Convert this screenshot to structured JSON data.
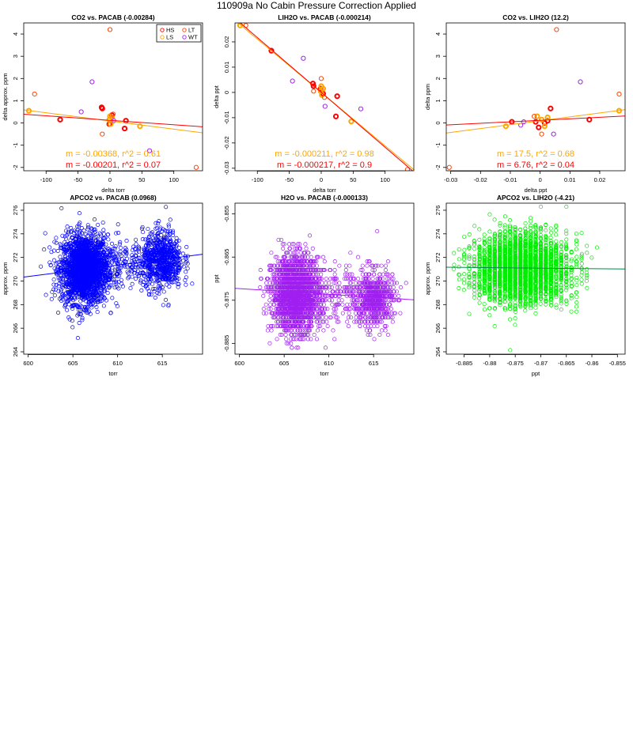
{
  "page": {
    "title": "110909a   No Cabin Pressure Correction Applied"
  },
  "colors": {
    "HS": "#ff0000",
    "LS": "#ffa500",
    "LT": "#ff4500",
    "WT": "#a020f0",
    "fit_red": "#ff0000",
    "fit_orange": "#ffa500",
    "blue": "#0000ff",
    "purple": "#a020f0",
    "green": "#00ee00"
  },
  "legend": [
    {
      "label": "HS",
      "color": "#ff0000"
    },
    {
      "label": "LT",
      "color": "#ff4500"
    },
    {
      "label": "LS",
      "color": "#ffa500"
    },
    {
      "label": "WT",
      "color": "#a020f0"
    }
  ],
  "chart_data": [
    {
      "type": "scatter",
      "title": "CO2 vs. PACAB (-0.00284)",
      "xlabel": "delta torr",
      "ylabel": "delta approx. ppm",
      "xlim": [
        -135,
        145
      ],
      "ylim": [
        -2.15,
        4.5
      ],
      "xticks": [
        -100,
        -50,
        0,
        50,
        100
      ],
      "yticks": [
        -2,
        -1,
        0,
        1,
        2,
        3,
        4
      ],
      "legend": "top-right",
      "series": [
        {
          "name": "HS",
          "color": "#ff0000",
          "points": [
            [
              -78,
              0.15
            ],
            [
              -13,
              0.7
            ],
            [
              -1,
              -0.05
            ],
            [
              3,
              0.35
            ],
            [
              25,
              0.1
            ],
            [
              23,
              -0.25
            ],
            [
              -12,
              0.65
            ]
          ]
        },
        {
          "name": "LS",
          "color": "#ffa500",
          "points": [
            [
              -127,
              0.55
            ],
            [
              -1,
              0.15
            ],
            [
              1,
              -0.05
            ],
            [
              3,
              0.25
            ],
            [
              47,
              -0.15
            ],
            [
              0,
              0.3
            ]
          ]
        },
        {
          "name": "LT",
          "color": "#ff4500",
          "points": [
            [
              -118,
              1.3
            ],
            [
              0,
              4.2
            ],
            [
              135,
              -2.0
            ],
            [
              -12,
              -0.5
            ],
            [
              5,
              0.4
            ]
          ]
        },
        {
          "name": "WT",
          "color": "#a020f0",
          "points": [
            [
              -28,
              1.85
            ],
            [
              -45,
              0.5
            ],
            [
              62,
              -1.25
            ],
            [
              6,
              0.1
            ]
          ]
        }
      ],
      "fits": [
        {
          "color": "#ffa500",
          "slope": -0.00368,
          "intercept": 0.09
        },
        {
          "color": "#ff0000",
          "slope": -0.00201,
          "intercept": 0.12
        }
      ],
      "annotations": [
        {
          "text": "m = -0.00368, r^2 = 0.61",
          "color": "#ffa500"
        },
        {
          "text": "m = -0.00201, r^2 = 0.07",
          "color": "#ff0000"
        }
      ]
    },
    {
      "type": "scatter",
      "title": "LIH2O vs. PACAB (-0.000214)",
      "xlabel": "delta torr",
      "ylabel": "delta ppt",
      "xlim": [
        -135,
        145
      ],
      "ylim": [
        -0.031,
        0.0275
      ],
      "xticks": [
        -100,
        -50,
        0,
        50,
        100
      ],
      "yticks": [
        -0.03,
        -0.02,
        -0.01,
        0.0,
        0.01,
        0.02
      ],
      "series": [
        {
          "name": "HS",
          "color": "#ff0000",
          "points": [
            [
              -78,
              0.0165
            ],
            [
              -13,
              0.0035
            ],
            [
              -1,
              0.0015
            ],
            [
              3,
              -0.0005
            ],
            [
              25,
              -0.0015
            ],
            [
              23,
              -0.0095
            ],
            [
              -12,
              0.0025
            ]
          ]
        },
        {
          "name": "LS",
          "color": "#ffa500",
          "points": [
            [
              -127,
              0.0265
            ],
            [
              -1,
              0.0005
            ],
            [
              1,
              -0.001
            ],
            [
              3,
              0.0015
            ],
            [
              47,
              -0.0115
            ],
            [
              0,
              0.0025
            ]
          ]
        },
        {
          "name": "LT",
          "color": "#ff4500",
          "points": [
            [
              -118,
              0.0265
            ],
            [
              0,
              0.0055
            ],
            [
              135,
              -0.0305
            ],
            [
              -12,
              0.0005
            ],
            [
              5,
              -0.002
            ]
          ]
        },
        {
          "name": "WT",
          "color": "#a020f0",
          "points": [
            [
              -28,
              0.0135
            ],
            [
              -45,
              0.0045
            ],
            [
              62,
              -0.0065
            ],
            [
              6,
              -0.0055
            ]
          ]
        }
      ],
      "fits": [
        {
          "color": "#ffa500",
          "slope": -0.000211,
          "intercept": 0.0
        },
        {
          "color": "#ff0000",
          "slope": -0.000217,
          "intercept": 0.0
        }
      ],
      "annotations": [
        {
          "text": "m = -0.000211, r^2 = 0.98",
          "color": "#ffa500"
        },
        {
          "text": "m = -0.000217, r^2 = 0.9",
          "color": "#ff0000"
        }
      ]
    },
    {
      "type": "scatter",
      "title": "CO2 vs. LIH2O (12.2)",
      "xlabel": "delta ppt",
      "ylabel": "delta ppm",
      "xlim": [
        -0.0315,
        0.0285
      ],
      "ylim": [
        -2.15,
        4.5
      ],
      "xticks": [
        -0.03,
        -0.02,
        -0.01,
        0.0,
        0.01,
        0.02
      ],
      "yticks": [
        -2,
        -1,
        0,
        1,
        2,
        3,
        4
      ],
      "series": [
        {
          "name": "HS",
          "color": "#ff0000",
          "points": [
            [
              0.0165,
              0.15
            ],
            [
              0.0035,
              0.65
            ],
            [
              0.0015,
              0.0
            ],
            [
              0.0025,
              0.1
            ],
            [
              -0.0015,
              0.05
            ],
            [
              -0.0095,
              0.05
            ],
            [
              -0.0005,
              -0.2
            ]
          ]
        },
        {
          "name": "LS",
          "color": "#ffa500",
          "points": [
            [
              0.0265,
              0.55
            ],
            [
              0.0005,
              0.15
            ],
            [
              -0.001,
              0.3
            ],
            [
              0.0015,
              -0.15
            ],
            [
              -0.0115,
              -0.15
            ],
            [
              0.0025,
              0.25
            ]
          ]
        },
        {
          "name": "LT",
          "color": "#ff4500",
          "points": [
            [
              0.0265,
              1.3
            ],
            [
              0.0055,
              4.2
            ],
            [
              -0.0305,
              -2.0
            ],
            [
              0.0005,
              -0.5
            ],
            [
              -0.002,
              0.3
            ]
          ]
        },
        {
          "name": "WT",
          "color": "#a020f0",
          "points": [
            [
              0.0135,
              1.85
            ],
            [
              0.0045,
              -0.5
            ],
            [
              -0.0065,
              -0.1
            ],
            [
              -0.0055,
              0.05
            ]
          ]
        }
      ],
      "fits": [
        {
          "color": "#ffa500",
          "slope": 17.5,
          "intercept": 0.1
        },
        {
          "color": "#ff0000",
          "slope": 6.76,
          "intercept": 0.12
        }
      ],
      "annotations": [
        {
          "text": "m = 17.5, r^2 = 0.68",
          "color": "#ffa500"
        },
        {
          "text": "m = 6.76, r^2 = 0.04",
          "color": "#ff0000"
        }
      ]
    },
    {
      "type": "scatter",
      "title": "APCO2 vs. PACAB (0.0968)",
      "xlabel": "torr",
      "ylabel": "approx. ppm",
      "xlim": [
        599.5,
        619.5
      ],
      "ylim": [
        263.8,
        276.6
      ],
      "xticks": [
        600,
        605,
        610,
        615
      ],
      "yticks": [
        264,
        266,
        268,
        270,
        272,
        274,
        276
      ],
      "color": "#0000ff",
      "clusters": [
        {
          "n": 2200,
          "cx": 606.3,
          "sx": 1.3,
          "cy": 271.0,
          "sy": 1.45
        },
        {
          "n": 650,
          "cx": 615.0,
          "sx": 1.1,
          "cy": 271.8,
          "sy": 1.25
        },
        {
          "n": 200,
          "cx": 611.0,
          "sx": 2.3,
          "cy": 271.5,
          "sy": 1.0
        }
      ],
      "xrange": [
        600.2,
        618.8
      ],
      "yrange": [
        264.0,
        276.3
      ],
      "fit": {
        "slope": 0.0968,
        "intercept": 212.3
      }
    },
    {
      "type": "scatter",
      "title": "H2O vs. PACAB (-0.000133)",
      "xlabel": "torr",
      "ylabel": "ppt",
      "xlim": [
        599.5,
        619.5
      ],
      "ylim": [
        -0.8875,
        -0.8525
      ],
      "xticks": [
        600,
        605,
        610,
        615
      ],
      "yticks": [
        -0.885,
        -0.875,
        -0.865,
        -0.855
      ],
      "color": "#a020f0",
      "quantize": 0.001,
      "clusters": [
        {
          "n": 2200,
          "cx": 606.3,
          "sx": 1.3,
          "cy": -0.8735,
          "sy": 0.0042
        },
        {
          "n": 650,
          "cx": 615.0,
          "sx": 1.1,
          "cy": -0.8745,
          "sy": 0.0032
        },
        {
          "n": 200,
          "cx": 611.0,
          "sx": 2.3,
          "cy": -0.874,
          "sy": 0.0035
        }
      ],
      "xrange": [
        600.2,
        618.8
      ],
      "yrange": [
        -0.8865,
        -0.8555
      ],
      "fit": {
        "slope": -0.000133,
        "intercept": -0.7925
      }
    },
    {
      "type": "scatter",
      "title": "APCO2 vs. LIH2O (-4.21)",
      "xlabel": "ppt",
      "ylabel": "approx. ppm",
      "xlim": [
        -0.8885,
        -0.8535
      ],
      "ylim": [
        263.8,
        276.6
      ],
      "xticks": [
        -0.885,
        -0.88,
        -0.875,
        -0.87,
        -0.865,
        -0.86,
        -0.855
      ],
      "yticks": [
        264,
        266,
        268,
        270,
        272,
        274,
        276
      ],
      "color": "#00ee00",
      "quantize_x": 0.001,
      "clusters": [
        {
          "n": 2900,
          "cx": -0.8737,
          "sx": 0.0045,
          "cy": 271.1,
          "sy": 1.45
        }
      ],
      "xrange": [
        -0.8878,
        -0.8545
      ],
      "yrange": [
        264.0,
        276.3
      ],
      "fit": {
        "slope": -4.21,
        "intercept": 267.43
      }
    }
  ]
}
